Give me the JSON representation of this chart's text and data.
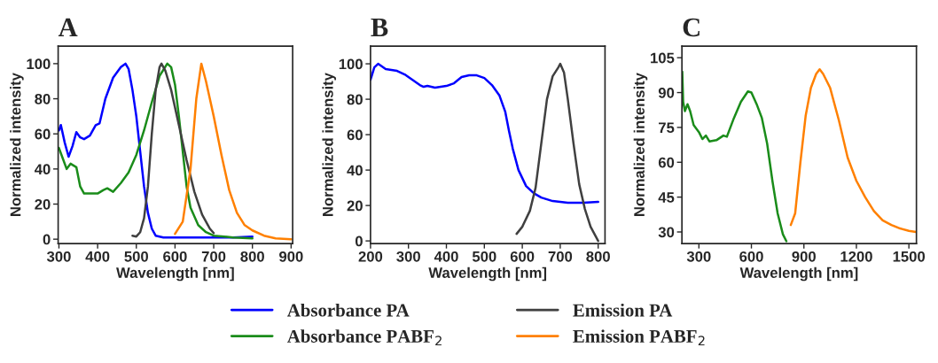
{
  "chart_data": [
    {
      "type": "line",
      "title": "A",
      "xlabel": "Wavelength [nm]",
      "ylabel": "Normalized intensity",
      "xlim": [
        298,
        904
      ],
      "ylim": [
        -2.5,
        110
      ],
      "xticks": [
        300,
        400,
        500,
        600,
        700,
        800,
        900
      ],
      "yticks": [
        0,
        20,
        40,
        60,
        80,
        100
      ],
      "grid": false,
      "legend": "bottom",
      "series": [
        {
          "name": "Absorbance PA",
          "color": "#0000ff",
          "x": [
            300,
            305,
            315,
            325,
            335,
            345,
            355,
            365,
            380,
            395,
            405,
            420,
            440,
            460,
            472,
            480,
            490,
            500,
            510,
            520,
            530,
            540,
            550,
            570,
            650,
            750,
            800
          ],
          "values": [
            62,
            65,
            55,
            47,
            53,
            61,
            58,
            57,
            59,
            65,
            66,
            80,
            92,
            98,
            100,
            97,
            85,
            70,
            50,
            30,
            15,
            6,
            2,
            1,
            1,
            1,
            1.5
          ]
        },
        {
          "name": "Absorbance PABF$_{2}$",
          "color": "#1a8c1a",
          "x": [
            300,
            310,
            320,
            330,
            345,
            355,
            365,
            380,
            400,
            415,
            425,
            440,
            460,
            480,
            500,
            520,
            540,
            560,
            580,
            590,
            600,
            610,
            620,
            630,
            640,
            660,
            680,
            700,
            750,
            800
          ],
          "values": [
            52,
            46,
            40,
            43,
            41,
            30,
            26,
            26,
            26,
            28,
            29,
            27,
            32,
            38,
            48,
            62,
            78,
            93,
            100,
            98,
            88,
            70,
            50,
            30,
            18,
            8,
            4,
            2,
            1,
            0.5
          ]
        },
        {
          "name": "Emission PA",
          "color": "#404040",
          "x": [
            490,
            500,
            510,
            520,
            530,
            540,
            550,
            560,
            565,
            575,
            590,
            610,
            630,
            650,
            670,
            690,
            700
          ],
          "values": [
            2,
            1.5,
            4,
            12,
            30,
            60,
            85,
            98,
            100,
            96,
            85,
            65,
            45,
            27,
            14,
            6,
            3.5
          ]
        },
        {
          "name": "Emission PABF$_{2}$",
          "color": "#ff8000",
          "x": [
            600,
            620,
            640,
            655,
            668,
            680,
            690,
            700,
            720,
            740,
            760,
            780,
            800,
            830,
            860,
            900
          ],
          "values": [
            3,
            10,
            40,
            80,
            100,
            90,
            80,
            70,
            48,
            28,
            15,
            8,
            5,
            2,
            0.5,
            0
          ]
        }
      ]
    },
    {
      "type": "line",
      "title": "B",
      "xlabel": "Wavelength [nm]",
      "ylabel": "Normalized intensity",
      "xlim": [
        200,
        818
      ],
      "ylim": [
        -1.5,
        110
      ],
      "xticks": [
        200,
        300,
        400,
        500,
        600,
        700,
        800
      ],
      "yticks": [
        0,
        20,
        40,
        60,
        80,
        100
      ],
      "grid": false,
      "series": [
        {
          "color": "#0000ff",
          "x": [
            200,
            210,
            220,
            240,
            270,
            290,
            310,
            330,
            340,
            350,
            370,
            400,
            420,
            440,
            460,
            480,
            500,
            520,
            540,
            555,
            565,
            575,
            590,
            610,
            630,
            650,
            680,
            720,
            760,
            800
          ],
          "values": [
            91,
            98,
            100,
            97,
            96,
            94,
            91,
            88,
            87,
            87.5,
            86.5,
            87.5,
            89,
            92.5,
            93.5,
            93.5,
            92,
            88,
            82,
            73,
            62,
            52,
            40,
            31,
            27,
            24.5,
            22.5,
            21.5,
            21.5,
            22
          ]
        },
        {
          "color": "#404040",
          "x": [
            585,
            600,
            620,
            635,
            650,
            665,
            680,
            695,
            700,
            710,
            720,
            735,
            750,
            765,
            780,
            800
          ],
          "values": [
            4,
            8,
            17,
            30,
            55,
            80,
            93,
            98,
            100,
            95,
            80,
            55,
            32,
            18,
            8,
            0
          ]
        }
      ]
    },
    {
      "type": "line",
      "title": "C",
      "xlabel": "Wavelength [nm]",
      "ylabel": "Normalized intensity",
      "xlim": [
        203,
        1543
      ],
      "ylim": [
        25,
        110
      ],
      "xticks": [
        300,
        600,
        900,
        1200,
        1500
      ],
      "yticks": [
        30,
        45,
        60,
        75,
        90,
        105
      ],
      "grid": false,
      "series": [
        {
          "color": "#1a8c1a",
          "x": [
            205,
            210,
            220,
            235,
            250,
            270,
            300,
            320,
            340,
            360,
            400,
            440,
            460,
            500,
            540,
            580,
            600,
            630,
            660,
            690,
            720,
            750,
            780,
            800
          ],
          "values": [
            99,
            86,
            82,
            85,
            82,
            76,
            73,
            70,
            71.5,
            69,
            69.5,
            71.5,
            71,
            79,
            86,
            90.5,
            90,
            85,
            79,
            68,
            52,
            38,
            29,
            26
          ]
        },
        {
          "color": "#ff8000",
          "x": [
            825,
            850,
            880,
            910,
            940,
            970,
            990,
            1010,
            1050,
            1100,
            1150,
            1200,
            1250,
            1300,
            1350,
            1400,
            1450,
            1500,
            1540
          ],
          "values": [
            33,
            38,
            60,
            80,
            92,
            98,
            100,
            98,
            92,
            78,
            62,
            52,
            45,
            39,
            35,
            33,
            31.5,
            30.5,
            30
          ]
        }
      ]
    }
  ]
}
